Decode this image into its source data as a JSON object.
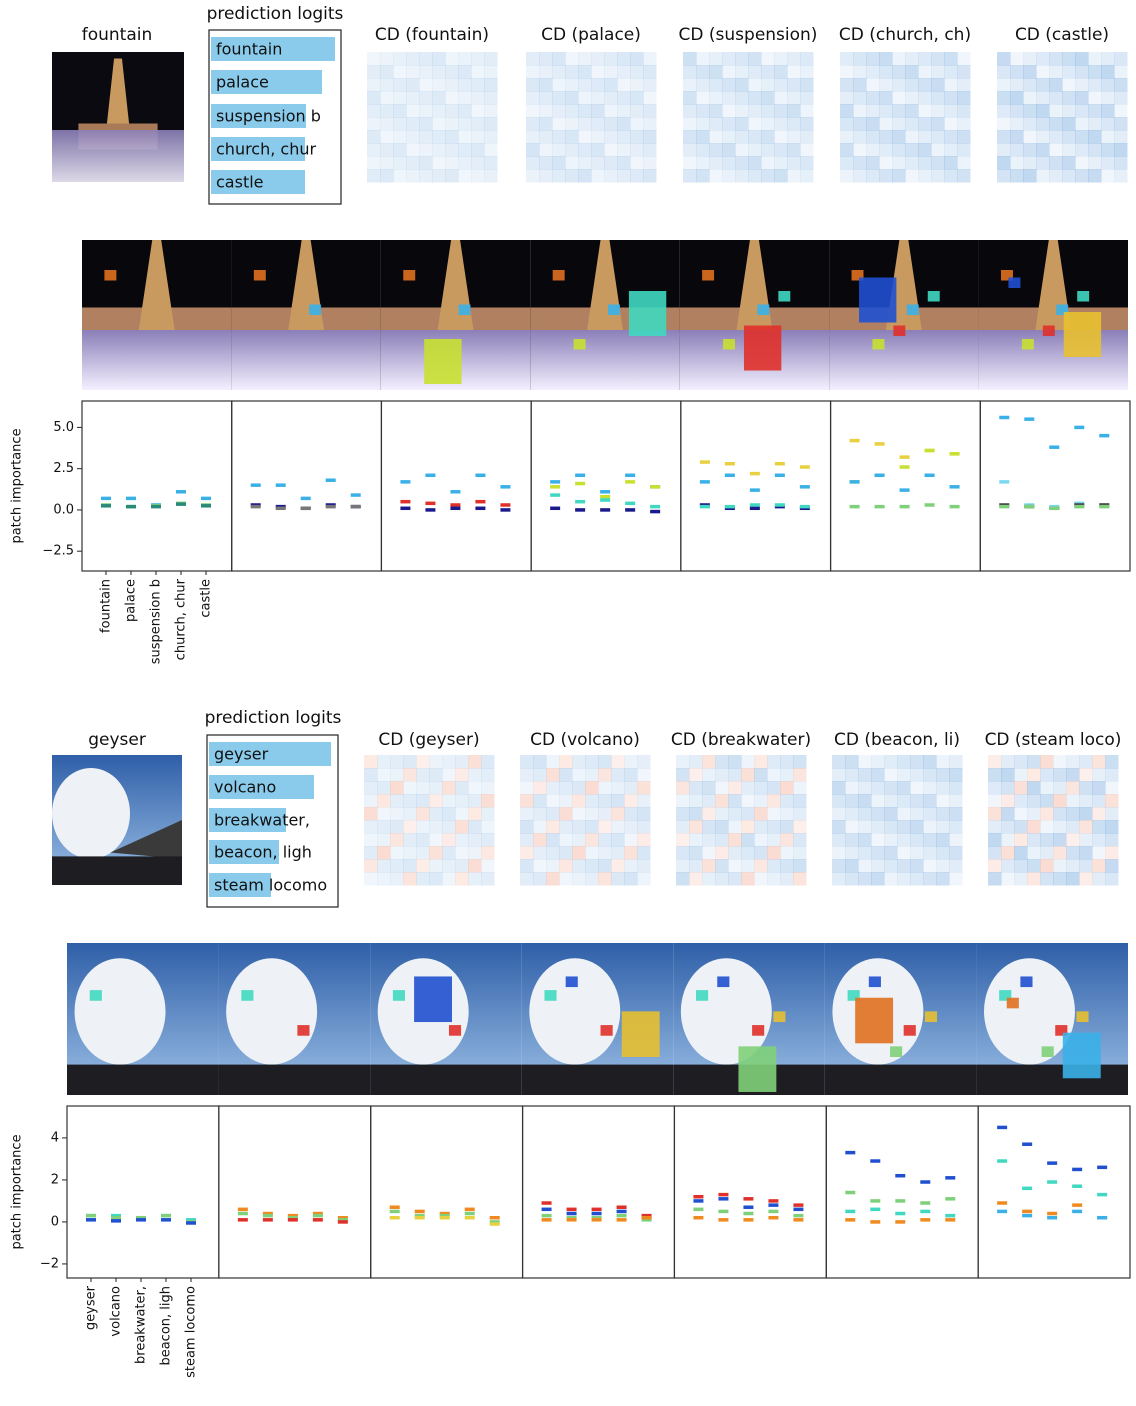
{
  "panels": [
    {
      "title": "fountain",
      "heatmap_titles": [
        "CD (fountain)",
        "CD (palace)",
        "CD (suspension)",
        "CD (church, ch)",
        "CD (castle)"
      ]
    },
    {
      "title": "geyser",
      "heatmap_titles": [
        "CD (geyser)",
        "CD (volcano)",
        "CD (breakwater)",
        "CD (beacon, li)",
        "CD (steam loco)"
      ]
    }
  ],
  "chart_data": [
    {
      "type": "hbar",
      "title": "prediction logits",
      "categories": [
        "fountain",
        "palace",
        "suspension b",
        "church, chur",
        "castle"
      ],
      "values": [
        12.4,
        11.1,
        9.5,
        9.4,
        9.4
      ],
      "color": "#8acbec"
    },
    {
      "type": "strip",
      "ylabel": "patch importance",
      "categories": [
        "fountain",
        "palace",
        "suspension b",
        "church, chur",
        "castle"
      ],
      "ylim": [
        -3.7,
        6.6
      ],
      "yticks": [
        {
          "value": 5,
          "label": "5.0"
        },
        2.5,
        {
          "value": 0,
          "label": "0.0"
        },
        {
          "value": -2.5,
          "label": "−2.5"
        }
      ],
      "subplots": [
        {
          "series": [
            {
              "color": "#3ab0e8",
              "values": [
                0.7,
                0.7,
                0.3,
                1.1,
                0.7
              ]
            },
            {
              "color": "#7fd07a",
              "values": [
                0.3,
                0.2,
                0.25,
                0.4,
                0.3
              ]
            },
            {
              "color": "#2a8a7a",
              "values": [
                0.25,
                0.2,
                0.2,
                0.35,
                0.25
              ]
            }
          ]
        },
        {
          "series": [
            {
              "color": "#3ab0e8",
              "values": [
                1.5,
                1.5,
                0.7,
                1.8,
                0.9
              ]
            },
            {
              "color": "#1a1a8c",
              "values": [
                0.3,
                0.2,
                0.1,
                0.3,
                0.2
              ]
            },
            {
              "color": "#777777",
              "values": [
                0.2,
                0.1,
                0.1,
                0.2,
                0.2
              ]
            }
          ]
        },
        {
          "series": [
            {
              "color": "#3ab0e8",
              "values": [
                1.7,
                2.1,
                1.1,
                2.1,
                1.4
              ]
            },
            {
              "color": "#e0302a",
              "values": [
                0.5,
                0.4,
                0.3,
                0.5,
                0.3
              ]
            },
            {
              "color": "#1a1a8c",
              "values": [
                0.1,
                0.0,
                0.1,
                0.1,
                0.0
              ]
            }
          ]
        },
        {
          "series": [
            {
              "color": "#3ab0e8",
              "values": [
                1.7,
                2.1,
                1.1,
                2.1,
                1.4
              ]
            },
            {
              "color": "#c8e030",
              "values": [
                1.4,
                1.6,
                0.8,
                1.7,
                1.4
              ]
            },
            {
              "color": "#40d8c0",
              "values": [
                0.9,
                0.5,
                0.6,
                0.4,
                0.2
              ]
            },
            {
              "color": "#1a1a8c",
              "values": [
                0.1,
                0.0,
                0.0,
                0.0,
                -0.1
              ]
            }
          ]
        },
        {
          "series": [
            {
              "color": "#e8d040",
              "values": [
                2.9,
                2.8,
                2.2,
                2.8,
                2.6
              ]
            },
            {
              "color": "#3ab0e8",
              "values": [
                1.7,
                2.1,
                1.2,
                2.1,
                1.4
              ]
            },
            {
              "color": "#1a1a8c",
              "values": [
                0.3,
                0.1,
                0.1,
                0.2,
                0.1
              ]
            },
            {
              "color": "#40d8c0",
              "values": [
                0.2,
                0.2,
                0.3,
                0.3,
                0.2
              ]
            }
          ]
        },
        {
          "series": [
            {
              "color": "#e8d040",
              "values": [
                4.2,
                4.0,
                3.2,
                3.6,
                3.4
              ]
            },
            {
              "color": "#c8e030",
              "values": [
                1.7,
                2.1,
                2.6,
                3.6,
                3.4
              ]
            },
            {
              "color": "#3ab0e8",
              "values": [
                1.7,
                2.1,
                1.2,
                2.1,
                1.4
              ]
            },
            {
              "color": "#7fd07a",
              "values": [
                0.2,
                0.2,
                0.2,
                0.3,
                0.2
              ]
            }
          ]
        },
        {
          "series": [
            {
              "color": "#3ab0e8",
              "values": [
                5.6,
                5.5,
                3.8,
                5.0,
                4.5
              ]
            },
            {
              "color": "#7ad8f0",
              "values": [
                1.7,
                0.3,
                0.2,
                0.4,
                0.3
              ]
            },
            {
              "color": "#444444",
              "values": [
                0.3,
                0.2,
                0.1,
                0.3,
                0.3
              ]
            },
            {
              "color": "#7fd07a",
              "values": [
                0.2,
                0.2,
                0.1,
                0.2,
                0.2
              ]
            }
          ]
        }
      ]
    },
    {
      "type": "hbar",
      "title": "prediction logits",
      "categories": [
        "geyser",
        "volcano",
        "breakwater,",
        "beacon, ligh",
        "steam locomo"
      ],
      "values": [
        12.2,
        10.5,
        7.7,
        7.0,
        6.2
      ],
      "color": "#8acbec"
    },
    {
      "type": "strip",
      "ylabel": "patch importance",
      "categories": [
        "geyser",
        "volcano",
        "breakwater,",
        "beacon, ligh",
        "steam locomo"
      ],
      "ylim": [
        -2.67,
        5.52
      ],
      "yticks": [
        4,
        2,
        0,
        {
          "value": -2,
          "label": "−2"
        }
      ],
      "subplots": [
        {
          "series": [
            {
              "color": "#40d8c0",
              "values": [
                0.3,
                0.3,
                0.2,
                0.3,
                0.1
              ]
            },
            {
              "color": "#7fd07a",
              "values": [
                0.3,
                0.2,
                0.2,
                0.3,
                0.0
              ]
            },
            {
              "color": "#2050d0",
              "values": [
                0.1,
                0.05,
                0.1,
                0.1,
                -0.05
              ]
            }
          ]
        },
        {
          "series": [
            {
              "color": "#f08a20",
              "values": [
                0.6,
                0.4,
                0.3,
                0.4,
                0.2
              ]
            },
            {
              "color": "#7fd07a",
              "values": [
                0.4,
                0.3,
                0.2,
                0.3,
                0.1
              ]
            },
            {
              "color": "#e0302a",
              "values": [
                0.1,
                0.1,
                0.1,
                0.1,
                0.0
              ]
            }
          ]
        },
        {
          "series": [
            {
              "color": "#f08a20",
              "values": [
                0.7,
                0.5,
                0.4,
                0.6,
                0.2
              ]
            },
            {
              "color": "#7fd07a",
              "values": [
                0.5,
                0.3,
                0.3,
                0.4,
                0.0
              ]
            },
            {
              "color": "#e8d040",
              "values": [
                0.2,
                0.2,
                0.2,
                0.2,
                -0.1
              ]
            }
          ]
        },
        {
          "series": [
            {
              "color": "#e0302a",
              "values": [
                0.9,
                0.6,
                0.6,
                0.7,
                0.3
              ]
            },
            {
              "color": "#2050d0",
              "values": [
                0.6,
                0.4,
                0.4,
                0.5,
                0.2
              ]
            },
            {
              "color": "#7fd07a",
              "values": [
                0.3,
                0.2,
                0.2,
                0.3,
                0.1
              ]
            },
            {
              "color": "#f08a20",
              "values": [
                0.1,
                0.1,
                0.1,
                0.1,
                0.2
              ]
            }
          ]
        },
        {
          "series": [
            {
              "color": "#e0302a",
              "values": [
                1.2,
                1.3,
                1.1,
                1.0,
                0.8
              ]
            },
            {
              "color": "#2050d0",
              "values": [
                1.0,
                1.1,
                0.7,
                0.8,
                0.6
              ]
            },
            {
              "color": "#7fd07a",
              "values": [
                0.6,
                0.5,
                0.4,
                0.5,
                0.3
              ]
            },
            {
              "color": "#f08a20",
              "values": [
                0.2,
                0.1,
                0.1,
                0.2,
                0.1
              ]
            }
          ]
        },
        {
          "series": [
            {
              "color": "#2050d0",
              "values": [
                3.3,
                2.9,
                2.2,
                1.9,
                2.1
              ]
            },
            {
              "color": "#7fd07a",
              "values": [
                1.4,
                1.0,
                1.0,
                0.9,
                1.1
              ]
            },
            {
              "color": "#40d8c0",
              "values": [
                0.5,
                0.6,
                0.4,
                0.5,
                0.3
              ]
            },
            {
              "color": "#f08a20",
              "values": [
                0.1,
                0.0,
                0.0,
                0.1,
                0.1
              ]
            }
          ]
        },
        {
          "series": [
            {
              "color": "#2050d0",
              "values": [
                4.5,
                3.7,
                2.8,
                2.5,
                2.6
              ]
            },
            {
              "color": "#40d8c0",
              "values": [
                2.9,
                1.6,
                1.9,
                1.7,
                1.3
              ]
            },
            {
              "color": "#f08a20",
              "values": [
                0.9,
                0.5,
                0.4,
                0.8,
                0.2
              ]
            },
            {
              "color": "#3ab0e8",
              "values": [
                0.5,
                0.3,
                0.2,
                0.5,
                0.2
              ]
            }
          ]
        }
      ]
    }
  ]
}
